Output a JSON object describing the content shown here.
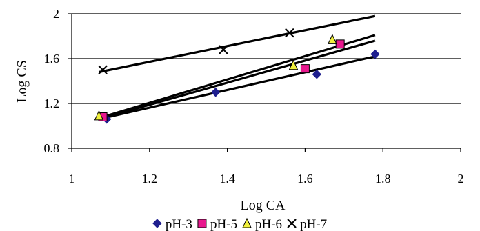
{
  "chart_data": {
    "type": "scatter",
    "xlabel": "Log CA",
    "ylabel": "Log CS",
    "xlim": [
      1,
      2
    ],
    "ylim": [
      0.8,
      2
    ],
    "x_ticks": [
      1,
      1.2,
      1.4,
      1.6,
      1.8,
      2
    ],
    "y_ticks": [
      0.8,
      1.2,
      1.6,
      2
    ],
    "x_tick_labels": [
      "1",
      "1.2",
      "1.4",
      "1.6",
      "1.8",
      "2"
    ],
    "y_tick_labels": [
      "0.8",
      "1.2",
      "1.6",
      "2"
    ],
    "grid": "horizontal",
    "legend_position": "bottom",
    "series": [
      {
        "name": "pH-3",
        "marker": "diamond",
        "color": "#1f1f8f",
        "points": [
          [
            1.09,
            1.06
          ],
          [
            1.37,
            1.3
          ],
          [
            1.63,
            1.46
          ],
          [
            1.78,
            1.64
          ]
        ],
        "trendline": [
          [
            1.07,
            1.06
          ],
          [
            1.78,
            1.62
          ]
        ]
      },
      {
        "name": "pH-5",
        "marker": "square",
        "color": "#e8188e",
        "points": [
          [
            1.08,
            1.08
          ],
          [
            1.6,
            1.51
          ],
          [
            1.69,
            1.73
          ]
        ],
        "trendline": [
          [
            1.07,
            1.06
          ],
          [
            1.78,
            1.76
          ]
        ]
      },
      {
        "name": "pH-6",
        "marker": "triangle",
        "color": "#f0f03c",
        "points": [
          [
            1.07,
            1.09
          ],
          [
            1.57,
            1.54
          ],
          [
            1.67,
            1.77
          ]
        ],
        "trendline": [
          [
            1.07,
            1.07
          ],
          [
            1.78,
            1.81
          ]
        ]
      },
      {
        "name": "pH-7",
        "marker": "cross",
        "color": "#000000",
        "points": [
          [
            1.08,
            1.5
          ],
          [
            1.39,
            1.68
          ],
          [
            1.56,
            1.83
          ]
        ],
        "trendline": [
          [
            1.07,
            1.48
          ],
          [
            1.78,
            1.98
          ]
        ]
      }
    ]
  }
}
